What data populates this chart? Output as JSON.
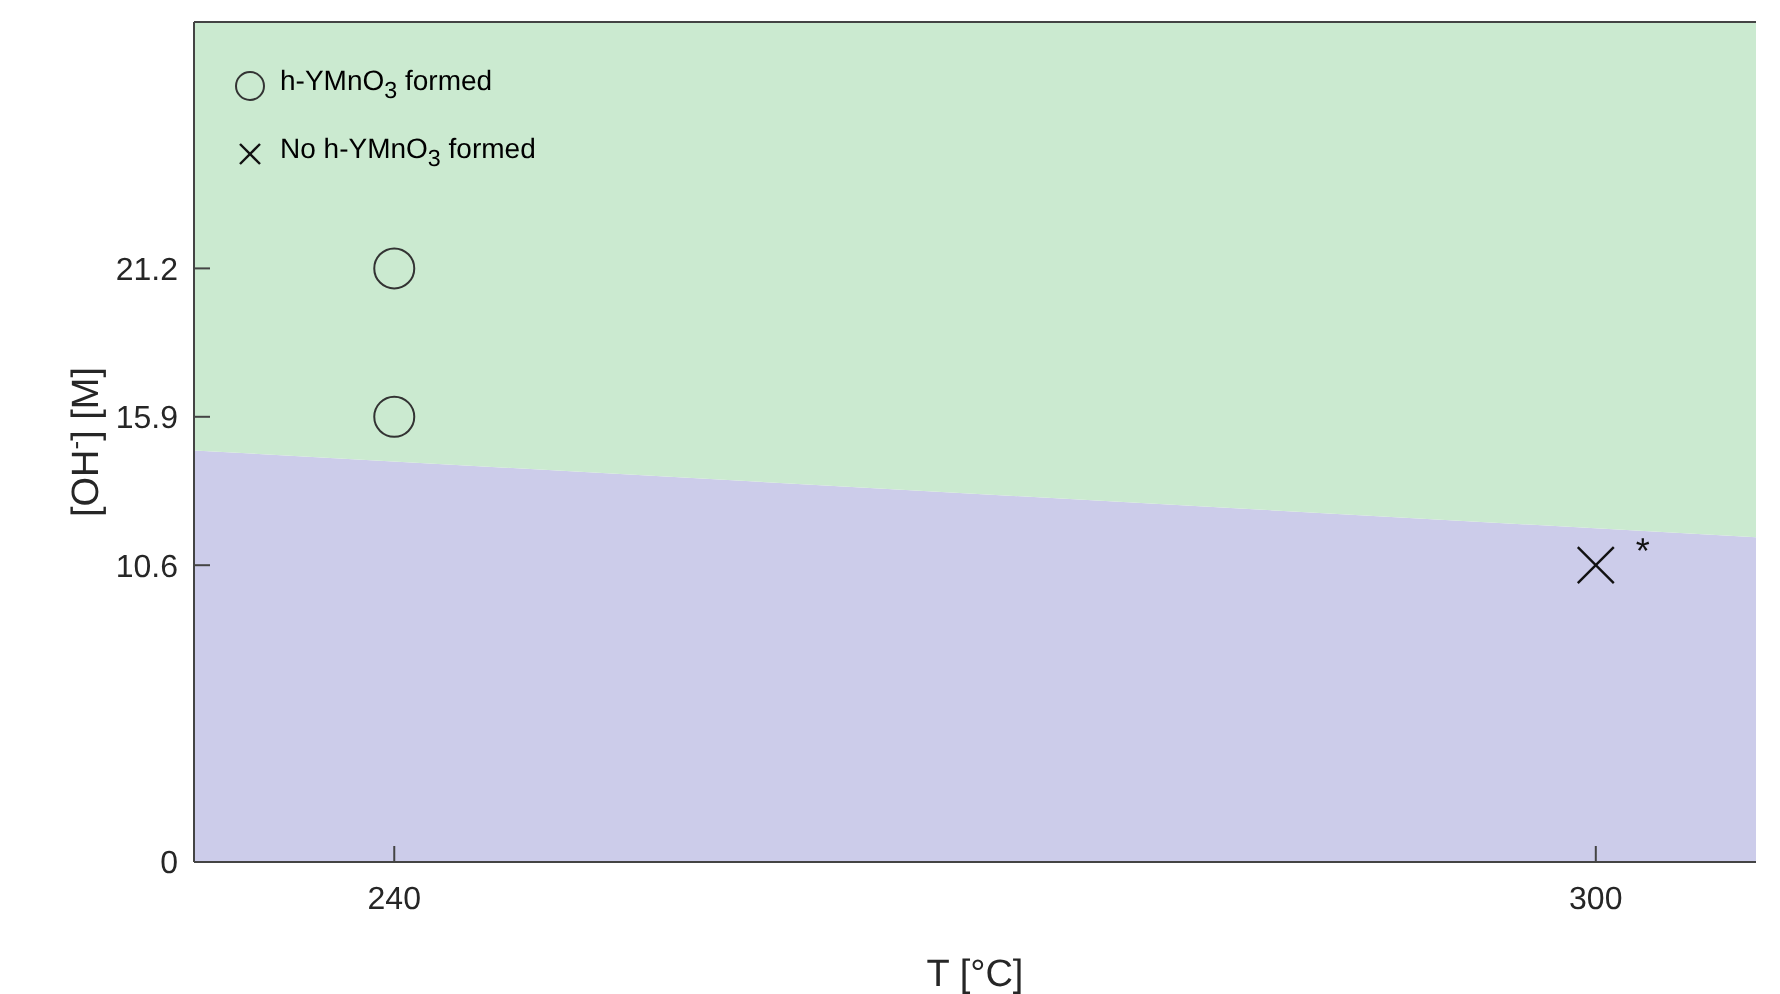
{
  "chart_data": {
    "type": "scatter",
    "xlabel": "T [°C]",
    "ylabel": "[OH$^{-}$] [M]",
    "xlim": [
      230,
      308
    ],
    "xticks": [
      240,
      300
    ],
    "ylim": [
      0,
      30
    ],
    "yticks": [
      0,
      10.6,
      15.9,
      21.2
    ],
    "grid": false,
    "legend": "top left",
    "stacked": true,
    "series": [
      {
        "type": "area",
        "color": "#ccccea",
        "x": [
          230,
          308
        ],
        "values": [
          14.7,
          11.6
        ]
      },
      {
        "type": "area",
        "color": "#cbead0",
        "x": [
          230,
          308
        ],
        "values": [
          15.3,
          18.4
        ]
      },
      {
        "name": "h-YMnO$_{3}$ formed",
        "color": "#333333",
        "marker": "circle",
        "x": [
          240,
          240
        ],
        "values": [
          21.2,
          15.9
        ]
      },
      {
        "name": "No  h-YMnO$_{3}$ formed",
        "color": "#111111",
        "marker": "cross",
        "x": [
          300
        ],
        "values": [
          10.6
        ]
      }
    ],
    "annotations": [
      {
        "text": "*",
        "x": 300,
        "y": 10.6
      }
    ]
  }
}
